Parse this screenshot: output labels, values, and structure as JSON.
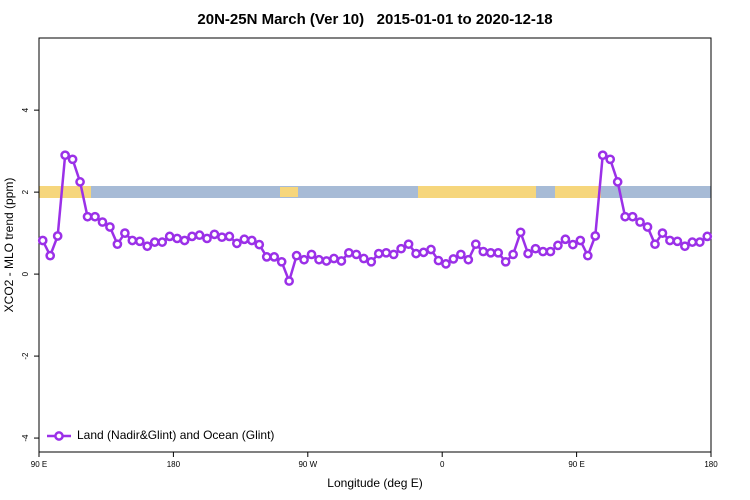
{
  "chart_data": {
    "type": "line",
    "title": "20N-25N March (Ver 10)   2015-01-01 to 2020-12-18",
    "xlabel": "Longitude (deg E)",
    "ylabel": "XCO2 - MLO trend (ppm)",
    "xlim": [
      90,
      540
    ],
    "ylim": [
      -4.34,
      5.76
    ],
    "xticks": [
      {
        "value": 90,
        "label": "90 E"
      },
      180,
      {
        "value": 270,
        "label": "90 W"
      },
      {
        "value": 360,
        "label": "0"
      },
      {
        "value": 450,
        "label": "90 E"
      },
      {
        "value": 540,
        "label": "180"
      }
    ],
    "yticks": [
      -4,
      -2,
      0,
      2,
      4
    ],
    "legend": "bottom-left",
    "x": [
      92.5,
      97.5,
      102.5,
      107.5,
      112.5,
      117.5,
      122.5,
      127.5,
      132.5,
      137.5,
      142.5,
      147.5,
      152.5,
      157.5,
      162.5,
      167.5,
      172.5,
      177.5,
      182.5,
      187.5,
      192.5,
      197.5,
      202.5,
      207.5,
      212.5,
      217.5,
      222.5,
      227.5,
      232.5,
      237.5,
      242.5,
      247.5,
      252.5,
      257.5,
      262.5,
      267.5,
      272.5,
      277.5,
      282.5,
      287.5,
      292.5,
      297.5,
      302.5,
      307.5,
      312.5,
      317.5,
      322.5,
      327.5,
      332.5,
      337.5,
      342.5,
      347.5,
      352.5,
      357.5,
      362.5,
      367.5,
      372.5,
      377.5,
      382.5,
      387.5,
      392.5,
      397.5,
      402.5,
      407.5,
      412.5,
      417.5,
      422.5,
      427.5,
      432.5,
      437.5,
      442.5,
      447.5,
      452.5,
      457.5,
      462.5,
      467.5,
      472.5,
      477.5,
      482.5,
      487.5,
      492.5,
      497.5,
      502.5,
      507.5,
      512.5,
      517.5,
      522.5,
      527.5,
      532.5,
      537.5
    ],
    "series": [
      {
        "name": "Land (Nadir&Glint) and Ocean (Glint)",
        "color": "#9b30e8",
        "values": [
          0.82,
          0.45,
          0.93,
          2.9,
          2.8,
          2.25,
          1.4,
          1.4,
          1.27,
          1.15,
          0.73,
          1.0,
          0.82,
          0.8,
          0.68,
          0.78,
          0.78,
          0.92,
          0.87,
          0.82,
          0.92,
          0.95,
          0.87,
          0.97,
          0.9,
          0.92,
          0.75,
          0.85,
          0.82,
          0.72,
          0.42,
          0.42,
          0.3,
          -0.17,
          0.45,
          0.35,
          0.48,
          0.35,
          0.32,
          0.38,
          0.32,
          0.52,
          0.48,
          0.38,
          0.3,
          0.5,
          0.52,
          0.48,
          0.62,
          0.73,
          0.5,
          0.53,
          0.6,
          0.33,
          0.25,
          0.37,
          0.48,
          0.35,
          0.73,
          0.55,
          0.52,
          0.52,
          0.3,
          0.48,
          1.02,
          0.5,
          0.62,
          0.55,
          0.55,
          0.7,
          0.85,
          0.72,
          0.82,
          0.45,
          0.93,
          2.9,
          2.8,
          2.25,
          1.4,
          1.4,
          1.27,
          1.15,
          0.73,
          1.0,
          0.82,
          0.8,
          0.68,
          0.78,
          0.78,
          0.92
        ]
      }
    ]
  }
}
